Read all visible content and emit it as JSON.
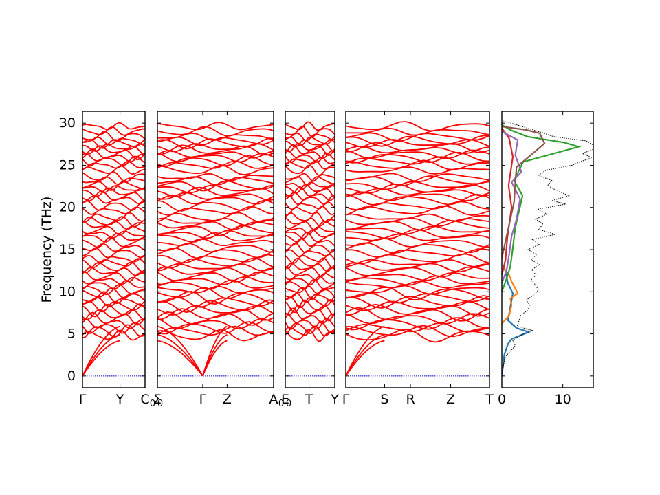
{
  "chart_data": {
    "type": "line",
    "ylabel": "Frequency (THz)",
    "ylim": [
      -1.4,
      31.4
    ],
    "yticks": [
      0,
      5,
      10,
      15,
      20,
      25,
      30
    ],
    "yticklabels": [
      "0",
      "5",
      "10",
      "15",
      "20",
      "25",
      "30"
    ],
    "line_color": "#ff0000",
    "zero_line_color": "#0000cc",
    "panels": [
      {
        "labels": [
          "Γ",
          "Y",
          "C"
        ],
        "positions": [
          0.0,
          0.6,
          1.0
        ],
        "segments": 2
      },
      {
        "labels": [
          "Σ",
          "Γ",
          "Z",
          "A"
        ],
        "positions": [
          0.0,
          0.39,
          0.6,
          1.0
        ],
        "segments": 3
      },
      {
        "labels": [
          "E",
          "T",
          "Y"
        ],
        "positions": [
          0.0,
          0.48,
          1.0
        ],
        "segments": 2
      },
      {
        "labels": [
          "Γ",
          "S",
          "R",
          "Z",
          "T"
        ],
        "positions": [
          0.0,
          0.27,
          0.45,
          0.73,
          1.0
        ],
        "segments": 4
      }
    ],
    "sublabels": [
      "0",
      "0",
      "0",
      "0"
    ],
    "band_levels": [
      29.6,
      29.0,
      28.4,
      27.9,
      27.6,
      27.1,
      26.8,
      26.3,
      25.9,
      25.5,
      25.0,
      24.4,
      23.6,
      23.2,
      22.6,
      22.2,
      21.8,
      21.3,
      20.9,
      20.2,
      19.6,
      18.8,
      18.3,
      17.9,
      17.3,
      16.8,
      16.4,
      15.8,
      15.2,
      14.6,
      13.9,
      13.4,
      12.9,
      12.4,
      11.8,
      11.3,
      10.8,
      10.2,
      9.8,
      9.3,
      8.8,
      8.3,
      7.8,
      7.3,
      6.8,
      6.2,
      5.7,
      5.3,
      4.8
    ],
    "acoustic_tops": [
      4.2,
      4.9,
      5.9
    ],
    "dos": {
      "xlim": [
        0,
        15
      ],
      "xticks": [
        0,
        10
      ],
      "xticklabels": [
        "0",
        "10"
      ],
      "total": [
        [
          0,
          0
        ],
        [
          0.5,
          2.2
        ],
        [
          2.2,
          3.6
        ],
        [
          1.8,
          4.2
        ],
        [
          3.2,
          4.9
        ],
        [
          5.0,
          5.4
        ],
        [
          2.5,
          5.9
        ],
        [
          2.8,
          6.5
        ],
        [
          3.1,
          7.2
        ],
        [
          4.2,
          7.8
        ],
        [
          4.6,
          8.4
        ],
        [
          4.0,
          9.0
        ],
        [
          5.2,
          9.6
        ],
        [
          6.0,
          10.2
        ],
        [
          5.5,
          10.8
        ],
        [
          4.8,
          11.4
        ],
        [
          5.6,
          12.0
        ],
        [
          4.9,
          12.6
        ],
        [
          6.2,
          13.2
        ],
        [
          4.8,
          13.8
        ],
        [
          5.7,
          14.4
        ],
        [
          4.3,
          15.0
        ],
        [
          6.1,
          15.6
        ],
        [
          5.0,
          16.2
        ],
        [
          8.8,
          16.8
        ],
        [
          6.0,
          17.4
        ],
        [
          6.8,
          18.0
        ],
        [
          5.5,
          18.6
        ],
        [
          7.4,
          19.2
        ],
        [
          6.0,
          19.8
        ],
        [
          10.5,
          20.4
        ],
        [
          8.2,
          20.8
        ],
        [
          11.0,
          21.4
        ],
        [
          9.0,
          22.0
        ],
        [
          7.5,
          22.6
        ],
        [
          8.2,
          23.2
        ],
        [
          6.0,
          23.8
        ],
        [
          7.2,
          24.4
        ],
        [
          11.5,
          25.0
        ],
        [
          12.8,
          25.4
        ],
        [
          14.8,
          25.9
        ],
        [
          13.2,
          26.4
        ],
        [
          15.0,
          26.9
        ],
        [
          15.0,
          27.4
        ],
        [
          13.8,
          27.9
        ],
        [
          8.5,
          28.4
        ],
        [
          6.5,
          28.9
        ],
        [
          4.2,
          29.4
        ],
        [
          2.0,
          29.9
        ],
        [
          0,
          30.3
        ]
      ],
      "partials": [
        {
          "color": "#1f77b4",
          "points": [
            [
              0,
              0
            ],
            [
              0.4,
              2.5
            ],
            [
              1.0,
              3.8
            ],
            [
              1.6,
              4.4
            ],
            [
              4.4,
              5.2
            ],
            [
              2.4,
              5.7
            ],
            [
              1.0,
              6.6
            ],
            [
              1.4,
              8.2
            ],
            [
              1.8,
              9.8
            ],
            [
              1.0,
              11.0
            ],
            [
              0.6,
              12.4
            ],
            [
              0.2,
              13.2
            ]
          ]
        },
        {
          "color": "#ff7f0e",
          "points": [
            [
              0,
              6.2
            ],
            [
              1.2,
              7.2
            ],
            [
              1.6,
              8.4
            ],
            [
              1.4,
              9.2
            ],
            [
              2.6,
              9.8
            ],
            [
              2.2,
              10.4
            ],
            [
              1.6,
              11.2
            ],
            [
              1.2,
              12.0
            ],
            [
              0.4,
              12.8
            ]
          ]
        },
        {
          "color": "#2ca02c",
          "points": [
            [
              0,
              10.0
            ],
            [
              0.8,
              11.6
            ],
            [
              1.4,
              13.0
            ],
            [
              1.8,
              15.2
            ],
            [
              2.2,
              17.6
            ],
            [
              3.4,
              21.4
            ],
            [
              2.0,
              23.2
            ],
            [
              3.5,
              25.4
            ],
            [
              12.6,
              27.2
            ],
            [
              10.2,
              27.7
            ],
            [
              4.2,
              28.4
            ],
            [
              1.4,
              29.2
            ],
            [
              0,
              29.8
            ]
          ]
        },
        {
          "color": "#d62728",
          "points": [
            [
              0,
              12.0
            ],
            [
              0.6,
              13.8
            ],
            [
              0.9,
              16.4
            ],
            [
              1.6,
              20.0
            ],
            [
              1.1,
              22.6
            ],
            [
              1.8,
              26.0
            ],
            [
              1.2,
              28.2
            ],
            [
              0,
              29.4
            ]
          ]
        },
        {
          "color": "#9467bd",
          "points": [
            [
              0,
              11.0
            ],
            [
              0.8,
              12.6
            ],
            [
              1.2,
              14.4
            ],
            [
              1.6,
              16.6
            ],
            [
              2.4,
              18.6
            ],
            [
              3.0,
              21.0
            ],
            [
              1.6,
              23.0
            ],
            [
              3.2,
              24.2
            ],
            [
              2.2,
              26.2
            ],
            [
              2.6,
              28.0
            ],
            [
              0,
              29.0
            ]
          ]
        },
        {
          "color": "#8c564b",
          "points": [
            [
              0,
              14.0
            ],
            [
              0.6,
              16.0
            ],
            [
              1.4,
              18.6
            ],
            [
              2.0,
              20.6
            ],
            [
              2.2,
              22.8
            ],
            [
              2.4,
              24.8
            ],
            [
              5.4,
              26.6
            ],
            [
              7.0,
              27.6
            ],
            [
              6.2,
              28.8
            ],
            [
              4.0,
              29.2
            ],
            [
              0,
              29.6
            ]
          ]
        }
      ]
    }
  }
}
